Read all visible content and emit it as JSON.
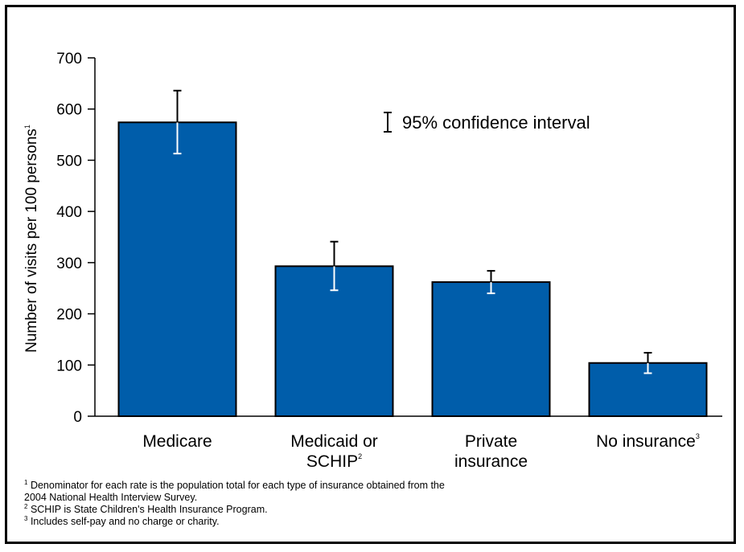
{
  "chart_data": {
    "type": "bar",
    "title": "",
    "xlabel": "",
    "ylabel": "Number of visits per 100 persons",
    "ylabel_footnote": "1",
    "ylim": [
      0,
      700
    ],
    "yticks": [
      0,
      100,
      200,
      300,
      400,
      500,
      600,
      700
    ],
    "categories": [
      {
        "lines": [
          "Medicare"
        ],
        "footnote": ""
      },
      {
        "lines": [
          "Medicaid or",
          "SCHIP"
        ],
        "footnote": "2"
      },
      {
        "lines": [
          "Private",
          "insurance"
        ],
        "footnote": ""
      },
      {
        "lines": [
          "No insurance"
        ],
        "footnote": "3"
      }
    ],
    "values": [
      574,
      293,
      262,
      104
    ],
    "ci_lower": [
      513,
      246,
      240,
      84
    ],
    "ci_upper": [
      636,
      341,
      284,
      124
    ],
    "bar_color": "#005DAA",
    "legend": {
      "label": "95% confidence interval",
      "placement": "top-right"
    },
    "grid": false
  },
  "footnotes": [
    {
      "mark": "1",
      "lines": [
        "Denominator for each rate is the population total for each type of insurance obtained from the",
        "2004 National Health Interview Survey."
      ]
    },
    {
      "mark": "2",
      "lines": [
        "SCHIP is State Children's Health Insurance Program."
      ]
    },
    {
      "mark": "3",
      "lines": [
        "Includes self-pay and no charge or charity."
      ]
    }
  ]
}
